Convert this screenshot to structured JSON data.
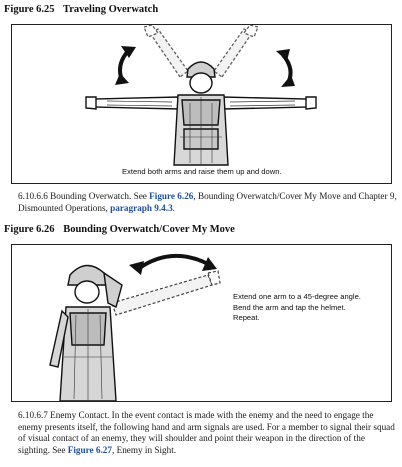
{
  "figure1": {
    "number": "Figure 6.25",
    "title": "Traveling Overwatch",
    "caption": "Extend both arms and raise them up and down."
  },
  "paragraph1": {
    "prefix": "6.10.6.6  Bounding Overwatch. See ",
    "link1": "Figure 6.26",
    "mid1": ", Bounding Overwatch/Cover My Move and Chapter 9, Dismounted Operations, ",
    "link2": "paragraph 9.4.3",
    "suffix": "."
  },
  "figure2": {
    "number": "Figure 6.26",
    "title": "Bounding Overwatch/Cover My Move",
    "caption_lines": [
      "Extend one arm to a 45-degree angle.",
      "Bend the arm and tap the helmet.",
      "Repeat."
    ]
  },
  "paragraph2": {
    "prefix": "6.10.6.7  Enemy Contact. In the event contact is made with the enemy and the need to engage the enemy presents itself, the following hand and arm signals are used. For a member to signal their squad of visual contact of an enemy, they will shoulder and point their weapon in the direction of the sighting. See ",
    "link1": "Figure 6.27",
    "suffix": ", Enemy in Sight."
  }
}
